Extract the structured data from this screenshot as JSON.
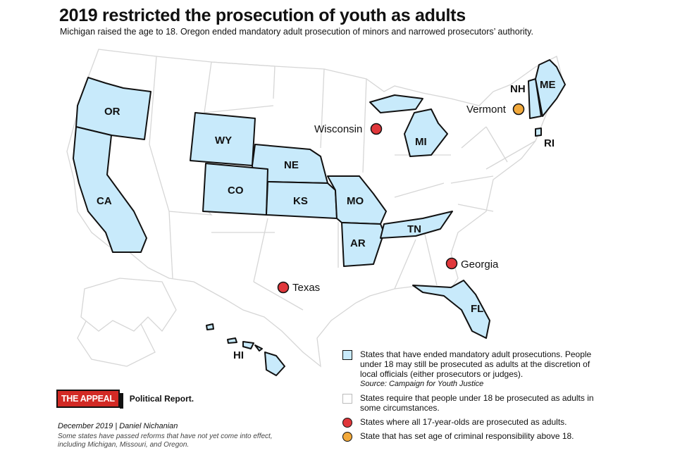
{
  "title": "2019 restricted the prosecution of youth as adults",
  "subtitle": "Michigan raised the age to 18. Oregon ended mandatory adult prosecution of minors and narrowed prosecutors’ authority.",
  "colors": {
    "ended_mandatory": "#c8eafb",
    "all_17_adults": "#e0373b",
    "above_18": "#f2a93b",
    "other_states": "#ffffff"
  },
  "state_labels": {
    "or": "OR",
    "ca": "CA",
    "wy": "WY",
    "ne": "NE",
    "co": "CO",
    "ks": "KS",
    "mo": "MO",
    "ar": "AR",
    "tn": "TN",
    "mi": "MI",
    "fl": "FL",
    "nh": "NH",
    "me": "ME",
    "ri": "RI",
    "hi": "HI"
  },
  "city_labels": {
    "wisconsin": "Wisconsin",
    "texas": "Texas",
    "georgia": "Georgia",
    "vermont": "Vermont"
  },
  "legend": {
    "blue": "States that have ended mandatory adult prosecutions. People under 18 may still be prosecuted as adults at the discretion of local officials (either prosecutors or judges).",
    "blue_source": "Source: Campaign for Youth Justice",
    "white": "States require that people under 18 be prosecuted as adults in some circumstances.",
    "red": "States where all 17-year-olds are prosecuted as adults.",
    "orange": "State that has set age of criminal responsibility above 18."
  },
  "logo": {
    "mark": "THE APPEAL",
    "text": "Political Report."
  },
  "credit": "December 2019 | Daniel Nichanian",
  "note": "Some states have passed reforms that have not yet come into effect, including Michigan, Missouri, and Oregon."
}
